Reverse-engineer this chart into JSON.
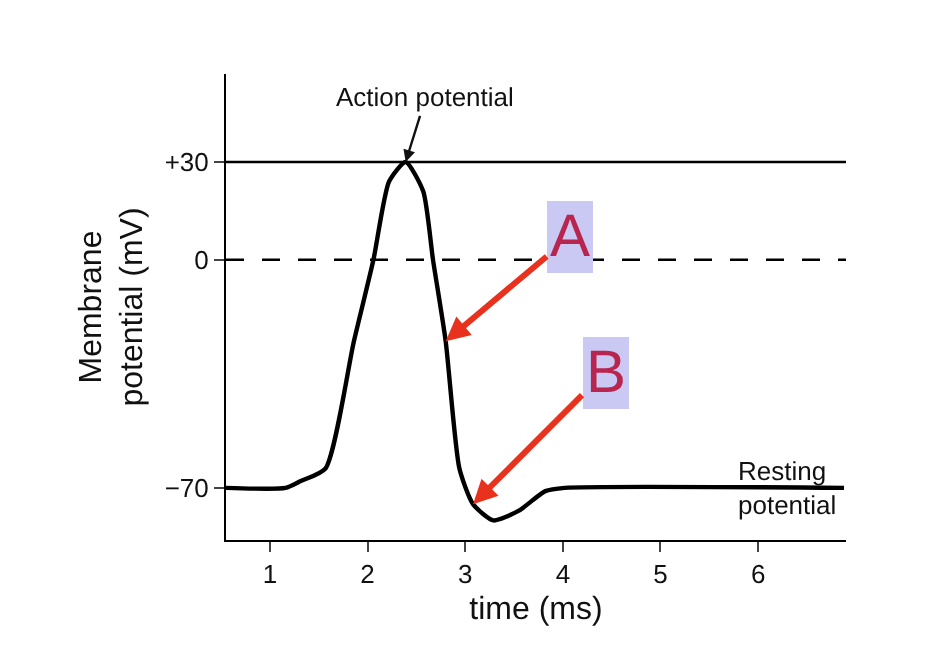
{
  "chart_data": {
    "type": "line",
    "xlabel": "time (ms)",
    "ylabel": "Membrane\npotential (mV)",
    "x": [
      0.55,
      1.16,
      1.31,
      1.57,
      1.86,
      2.06,
      2.22,
      2.39,
      2.57,
      2.67,
      2.8,
      2.94,
      3.08,
      3.29,
      3.55,
      3.82,
      4.02,
      6.88
    ],
    "series": [
      {
        "color": "#000000",
        "values": [
          -70,
          -70,
          -68,
          -64,
          -25,
          0,
          24,
          30,
          21,
          0,
          -25,
          -64,
          -75,
          -80,
          -77,
          -71,
          -70,
          -70
        ]
      }
    ],
    "xlim": [
      0.55,
      6.9
    ],
    "xticks": [
      1,
      2,
      3,
      4,
      5,
      6
    ],
    "ylim": [
      -86,
      57
    ],
    "yticks": [
      {
        "value": 30,
        "label": "+30"
      },
      0,
      {
        "value": -70,
        "label": "−70"
      }
    ],
    "ref_lines": [
      {
        "axis": "y",
        "value": 30,
        "line_style": "solid"
      },
      {
        "axis": "y",
        "value": 0,
        "line_style": "dashed"
      }
    ],
    "annotations": [
      {
        "text": "Action potential",
        "x": 2.39,
        "y": 30
      },
      {
        "text": "A",
        "x": 2.8,
        "y": -25
      },
      {
        "text": "B",
        "x": 3.08,
        "y": -75
      },
      {
        "text": "Resting\npotential",
        "x": 6.3,
        "y": -70
      }
    ],
    "grid": false,
    "marker": "none",
    "line_style": "solid"
  }
}
